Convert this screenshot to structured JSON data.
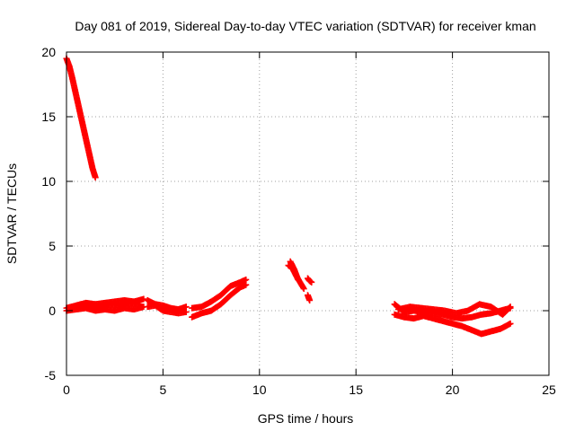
{
  "chart_data": {
    "type": "scatter",
    "title": "Day 081 of 2019, Sidereal Day-to-day VTEC variation (SDTVAR) for receiver kman",
    "xlabel": "GPS time / hours",
    "ylabel": "SDTVAR / TECUs",
    "xlim": [
      0,
      25
    ],
    "ylim": [
      -5,
      20
    ],
    "xticks": [
      0,
      5,
      10,
      15,
      20,
      25
    ],
    "yticks": [
      -5,
      0,
      5,
      10,
      15,
      20
    ],
    "grid": true,
    "marker": "+",
    "marker_color": "#ff0000",
    "series": [
      {
        "name": "SDTVAR",
        "segments": [
          {
            "x": [
              0.0,
              0.15,
              0.3,
              0.45,
              0.6,
              0.75,
              0.9,
              1.05,
              1.2,
              1.35,
              1.5
            ],
            "y": [
              19.5,
              18.9,
              18.0,
              17.0,
              16.0,
              15.0,
              14.0,
              13.0,
              12.0,
              11.0,
              10.3
            ]
          },
          {
            "x": [
              0.0,
              0.5,
              1.0,
              1.5,
              2.0,
              2.5,
              3.0,
              3.5,
              4.0
            ],
            "y": [
              0.2,
              0.4,
              0.6,
              0.5,
              0.6,
              0.7,
              0.8,
              0.7,
              0.9
            ]
          },
          {
            "x": [
              0.0,
              0.5,
              1.0,
              1.5,
              2.0,
              2.5,
              3.0,
              3.5,
              4.0
            ],
            "y": [
              0.0,
              0.1,
              0.2,
              0.0,
              0.1,
              0.0,
              0.2,
              0.1,
              0.3
            ]
          },
          {
            "x": [
              0.3,
              0.8,
              1.3,
              1.8,
              2.3,
              2.8,
              3.3,
              3.8
            ],
            "y": [
              0.3,
              0.5,
              0.4,
              0.3,
              0.5,
              0.4,
              0.6,
              0.5
            ]
          },
          {
            "x": [
              4.2,
              4.6,
              5.0,
              5.4,
              5.8,
              6.2
            ],
            "y": [
              0.8,
              0.5,
              0.4,
              0.2,
              0.1,
              0.3
            ]
          },
          {
            "x": [
              4.2,
              4.6,
              5.0,
              5.4,
              5.8,
              6.2
            ],
            "y": [
              0.3,
              0.4,
              0.0,
              -0.1,
              -0.2,
              -0.1
            ]
          },
          {
            "x": [
              6.5,
              7.0,
              7.5,
              8.0,
              8.5,
              9.0,
              9.3
            ],
            "y": [
              0.2,
              0.3,
              0.7,
              1.2,
              1.9,
              2.2,
              2.4
            ]
          },
          {
            "x": [
              6.5,
              7.0,
              7.5,
              8.0,
              8.5,
              9.0,
              9.3
            ],
            "y": [
              -0.5,
              -0.2,
              0.0,
              0.5,
              1.2,
              1.8,
              2.0
            ]
          },
          {
            "x": [
              11.5,
              11.7,
              11.9,
              12.1,
              12.3
            ],
            "y": [
              3.5,
              3.3,
              2.7,
              2.2,
              1.7
            ]
          },
          {
            "x": [
              11.6,
              11.8,
              12.0
            ],
            "y": [
              3.8,
              3.2,
              2.4
            ]
          },
          {
            "x": [
              12.5,
              12.6,
              12.7
            ],
            "y": [
              2.5,
              2.3,
              2.2
            ]
          },
          {
            "x": [
              12.5,
              12.6
            ],
            "y": [
              1.2,
              0.8
            ]
          },
          {
            "x": [
              17.0,
              17.5,
              18.0,
              18.5,
              19.0,
              19.5,
              20.0,
              20.5,
              21.0,
              21.5,
              22.0,
              22.5,
              23.0
            ],
            "y": [
              0.5,
              -0.1,
              0.0,
              -0.1,
              -0.2,
              -0.3,
              -0.5,
              -0.6,
              -0.5,
              -0.3,
              -0.2,
              0.0,
              0.2
            ]
          },
          {
            "x": [
              17.0,
              17.5,
              18.0,
              18.5,
              19.0,
              19.5,
              20.0,
              20.5,
              21.0,
              21.5,
              22.0,
              22.5,
              23.0
            ],
            "y": [
              -0.3,
              -0.5,
              -0.6,
              -0.4,
              -0.6,
              -0.8,
              -1.0,
              -1.2,
              -1.5,
              -1.8,
              -1.6,
              -1.4,
              -1.0
            ]
          },
          {
            "x": [
              17.2,
              17.8,
              18.4,
              19.0,
              19.6,
              20.2,
              20.8,
              21.4,
              22.0,
              22.6,
              23.0
            ],
            "y": [
              0.1,
              0.3,
              0.2,
              0.1,
              0.0,
              -0.2,
              0.0,
              0.5,
              0.3,
              -0.3,
              0.3
            ]
          }
        ]
      }
    ]
  }
}
